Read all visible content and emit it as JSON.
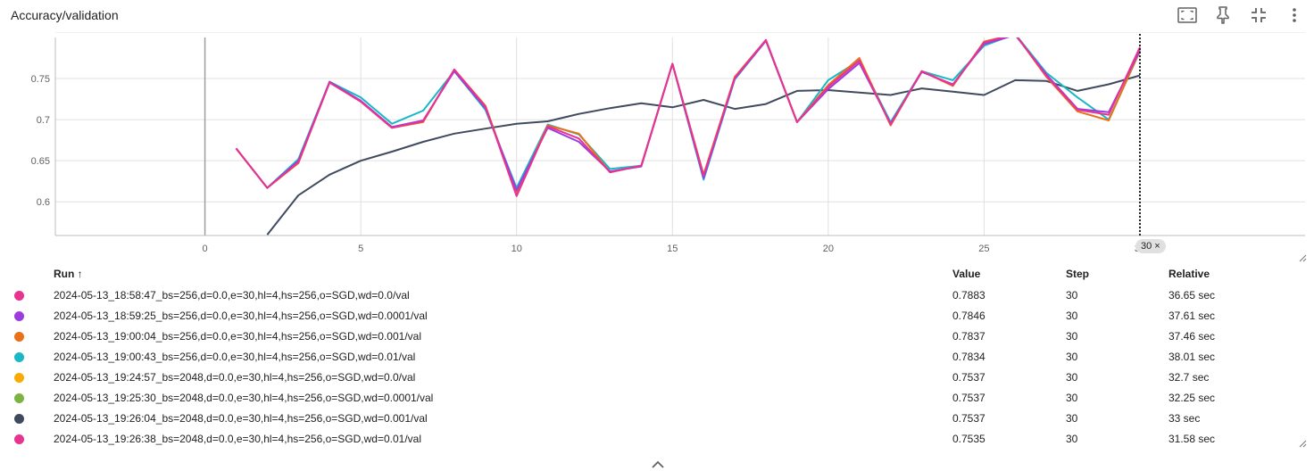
{
  "card": {
    "title": "Accuracy/validation"
  },
  "toolbar": {
    "icons": [
      "fullscreen-icon",
      "pin-icon",
      "collapse-icon",
      "more-vert-icon"
    ]
  },
  "step_chip": {
    "label": "30",
    "close": "×"
  },
  "table": {
    "headers": {
      "run": "Run",
      "sort": "↑",
      "value": "Value",
      "step": "Step",
      "relative": "Relative"
    },
    "rows": [
      {
        "run": "2024-05-13_18:58:47_bs=256,d=0.0,e=30,hl=4,hs=256,o=SGD,wd=0.0/val",
        "value": "0.7883",
        "step": "30",
        "relative": "36.65 sec",
        "color": "#e8338f"
      },
      {
        "run": "2024-05-13_18:59:25_bs=256,d=0.0,e=30,hl=4,hs=256,o=SGD,wd=0.0001/val",
        "value": "0.7846",
        "step": "30",
        "relative": "37.61 sec",
        "color": "#9c3ce0"
      },
      {
        "run": "2024-05-13_19:00:04_bs=256,d=0.0,e=30,hl=4,hs=256,o=SGD,wd=0.001/val",
        "value": "0.7837",
        "step": "30",
        "relative": "37.46 sec",
        "color": "#e8711a"
      },
      {
        "run": "2024-05-13_19:00:43_bs=256,d=0.0,e=30,hl=4,hs=256,o=SGD,wd=0.01/val",
        "value": "0.7834",
        "step": "30",
        "relative": "38.01 sec",
        "color": "#1ab7c7"
      },
      {
        "run": "2024-05-13_19:24:57_bs=2048,d=0.0,e=30,hl=4,hs=256,o=SGD,wd=0.0/val",
        "value": "0.7537",
        "step": "30",
        "relative": "32.7 sec",
        "color": "#f7ab04"
      },
      {
        "run": "2024-05-13_19:25:30_bs=2048,d=0.0,e=30,hl=4,hs=256,o=SGD,wd=0.0001/val",
        "value": "0.7537",
        "step": "30",
        "relative": "32.25 sec",
        "color": "#7cb342"
      },
      {
        "run": "2024-05-13_19:26:04_bs=2048,d=0.0,e=30,hl=4,hs=256,o=SGD,wd=0.001/val",
        "value": "0.7537",
        "step": "30",
        "relative": "33 sec",
        "color": "#3f4a5e"
      },
      {
        "run": "2024-05-13_19:26:38_bs=2048,d=0.0,e=30,hl=4,hs=256,o=SGD,wd=0.01/val",
        "value": "0.7535",
        "step": "30",
        "relative": "31.58 sec",
        "color": "#e8338f"
      }
    ]
  },
  "chart_data": {
    "type": "line",
    "xlim": [
      -4.8,
      35.3
    ],
    "ylim": [
      0.559,
      0.8
    ],
    "xticks": [
      0,
      5,
      10,
      15,
      20,
      25,
      30
    ],
    "yticks": [
      0.6,
      0.65,
      0.7,
      0.75
    ],
    "ytick_labels": [
      "0.6",
      "0.65",
      "0.7",
      "0.75"
    ],
    "xtick_labels": [
      "0",
      "5",
      "10",
      "15",
      "20",
      "25",
      "30"
    ],
    "grid": true,
    "cursor_step": 30,
    "series": [
      {
        "color": "#3f4a5e",
        "x": [
          2,
          3,
          4,
          5,
          6,
          7,
          8,
          9,
          10,
          11,
          12,
          13,
          14,
          15,
          16,
          17,
          18,
          19,
          20,
          21,
          22,
          23,
          24,
          25,
          26,
          27,
          28,
          29,
          30
        ],
        "y": [
          0.56,
          0.608,
          0.633,
          0.65,
          0.661,
          0.673,
          0.683,
          0.689,
          0.695,
          0.698,
          0.707,
          0.714,
          0.72,
          0.715,
          0.724,
          0.713,
          0.719,
          0.735,
          0.736,
          0.733,
          0.73,
          0.738,
          0.734,
          0.73,
          0.748,
          0.747,
          0.735,
          0.743,
          0.7537
        ]
      },
      {
        "color": "#1ab7c7",
        "x": [
          1,
          2,
          3,
          4,
          5,
          6,
          7,
          8,
          9,
          10,
          11,
          12,
          13,
          14,
          15,
          16,
          17,
          18,
          19,
          20,
          21,
          22,
          23,
          24,
          25,
          26,
          27,
          28,
          29,
          30
        ],
        "y": [
          0.665,
          0.617,
          0.652,
          0.746,
          0.727,
          0.695,
          0.711,
          0.759,
          0.712,
          0.617,
          0.694,
          0.682,
          0.64,
          0.644,
          0.768,
          0.627,
          0.749,
          0.796,
          0.697,
          0.748,
          0.772,
          0.697,
          0.759,
          0.748,
          0.79,
          0.804,
          0.757,
          0.727,
          0.7,
          0.7834
        ]
      },
      {
        "color": "#e8711a",
        "x": [
          1,
          2,
          3,
          4,
          5,
          6,
          7,
          8,
          9,
          10,
          11,
          12,
          13,
          14,
          15,
          16,
          17,
          18,
          19,
          20,
          21,
          22,
          23,
          24,
          25,
          26,
          27,
          28,
          29,
          30
        ],
        "y": [
          0.665,
          0.617,
          0.647,
          0.746,
          0.722,
          0.69,
          0.697,
          0.761,
          0.717,
          0.611,
          0.693,
          0.683,
          0.636,
          0.644,
          0.768,
          0.633,
          0.752,
          0.797,
          0.697,
          0.742,
          0.775,
          0.693,
          0.759,
          0.741,
          0.795,
          0.804,
          0.752,
          0.71,
          0.699,
          0.7837
        ]
      },
      {
        "color": "#9c3ce0",
        "x": [
          1,
          2,
          3,
          4,
          5,
          6,
          7,
          8,
          9,
          10,
          11,
          12,
          13,
          14,
          15,
          16,
          17,
          18,
          19,
          20,
          21,
          22,
          23,
          24,
          25,
          26,
          27,
          28,
          29,
          30
        ],
        "y": [
          0.665,
          0.617,
          0.65,
          0.746,
          0.723,
          0.691,
          0.699,
          0.759,
          0.714,
          0.614,
          0.69,
          0.673,
          0.637,
          0.643,
          0.768,
          0.629,
          0.75,
          0.796,
          0.697,
          0.737,
          0.769,
          0.695,
          0.758,
          0.743,
          0.792,
          0.803,
          0.755,
          0.713,
          0.709,
          0.7846
        ]
      },
      {
        "color": "#e8338f",
        "x": [
          1,
          2,
          3,
          4,
          5,
          6,
          7,
          8,
          9,
          10,
          11,
          12,
          13,
          14,
          15,
          16,
          17,
          18,
          19,
          20,
          21,
          22,
          23,
          24,
          25,
          26,
          27,
          28,
          29,
          30
        ],
        "y": [
          0.665,
          0.617,
          0.648,
          0.745,
          0.722,
          0.69,
          0.698,
          0.761,
          0.716,
          0.607,
          0.692,
          0.677,
          0.636,
          0.644,
          0.768,
          0.632,
          0.751,
          0.797,
          0.697,
          0.74,
          0.772,
          0.694,
          0.759,
          0.742,
          0.794,
          0.804,
          0.753,
          0.712,
          0.706,
          0.7883
        ]
      }
    ]
  }
}
